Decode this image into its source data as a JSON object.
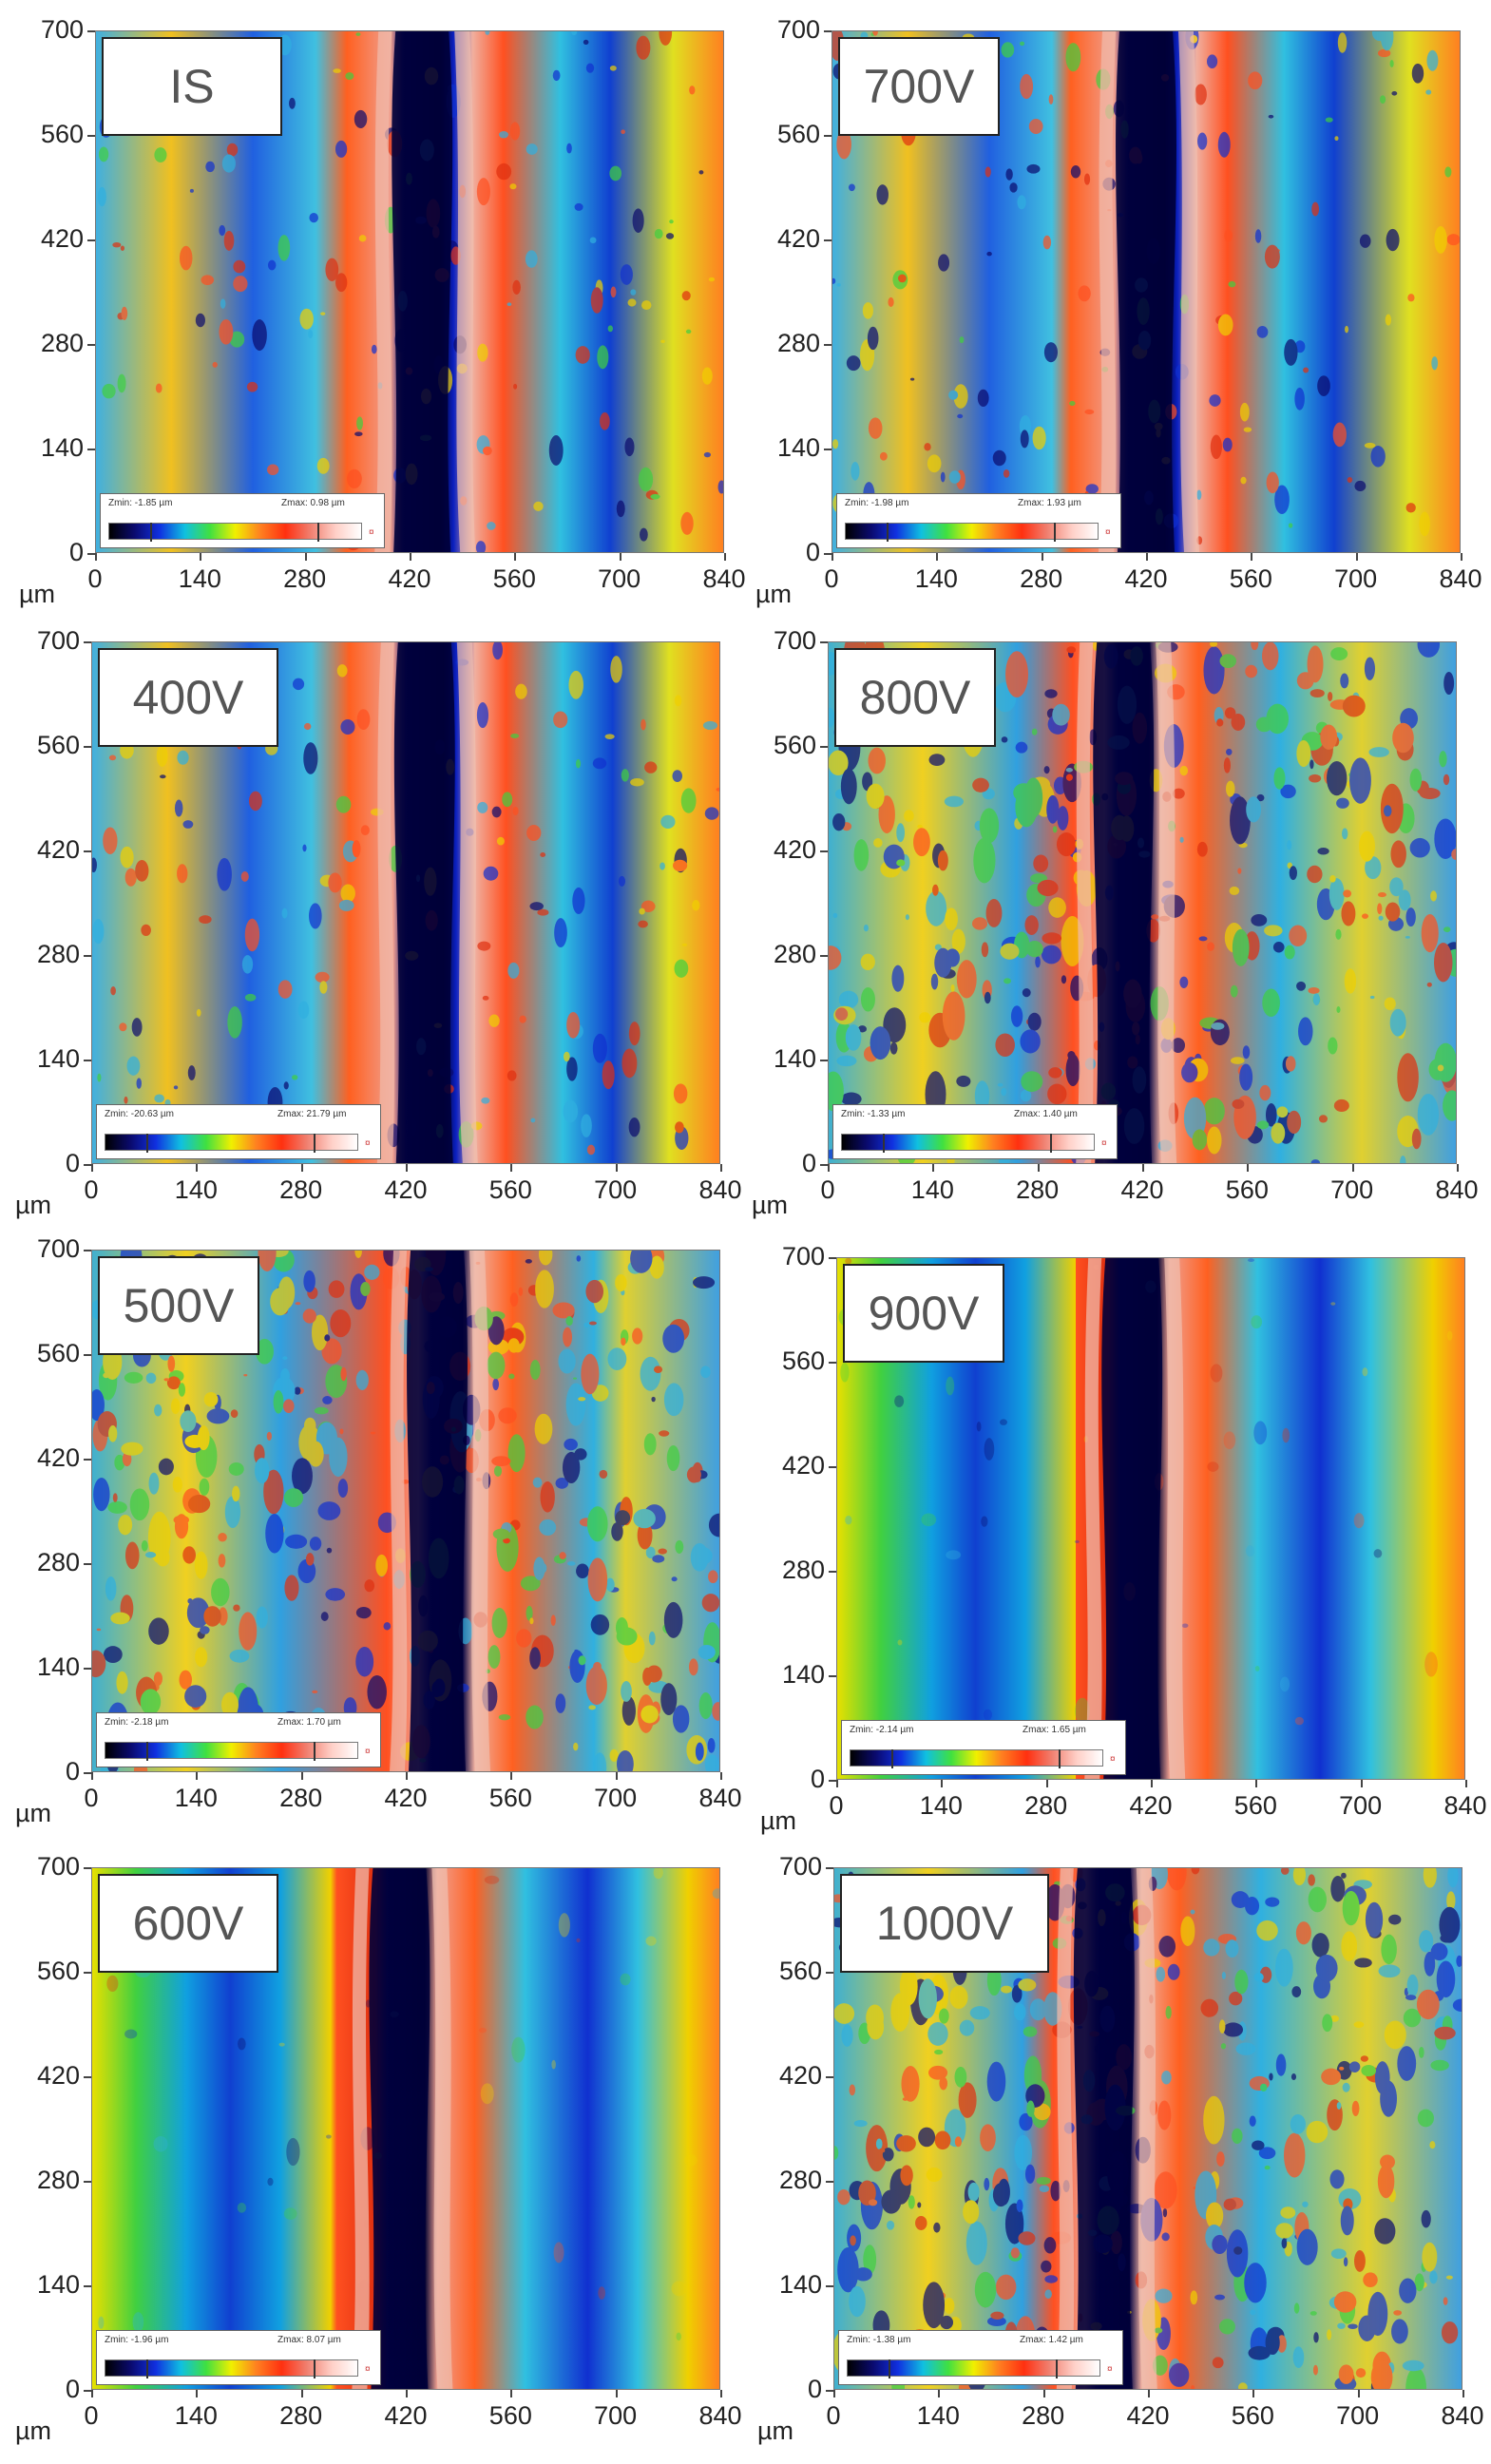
{
  "axis": {
    "y_ticks": [
      "700",
      "560",
      "420",
      "280",
      "140",
      "0"
    ],
    "x_ticks": [
      "0",
      "140",
      "280",
      "420",
      "560",
      "700",
      "840"
    ],
    "unit": "µm"
  },
  "scale": {
    "gradient_colors": [
      "#000000",
      "#0a0a6e",
      "#1030e0",
      "#10c0e0",
      "#40e040",
      "#f0f000",
      "#ff8020",
      "#ff3010",
      "#f08070",
      "#ffd0c8",
      "#ffffff"
    ],
    "end_glyph": "¤"
  },
  "panels": [
    {
      "label": "IS",
      "zmin": "Zmin: -1.85 µm",
      "zmax": "Zmax: 0.98 µm"
    },
    {
      "label": "700V",
      "zmin": "Zmin: -1.98 µm",
      "zmax": "Zmax: 1.93 µm"
    },
    {
      "label": "400V",
      "zmin": "Zmin: -20.63 µm",
      "zmax": "Zmax: 21.79 µm"
    },
    {
      "label": "800V",
      "zmin": "Zmin: -1.33 µm",
      "zmax": "Zmax: 1.40 µm"
    },
    {
      "label": "500V",
      "zmin": "Zmin: -2.18 µm",
      "zmax": "Zmax: 1.70 µm"
    },
    {
      "label": "900V",
      "zmin": "Zmin: -2.14 µm",
      "zmax": "Zmax: 1.65 µm"
    },
    {
      "label": "600V",
      "zmin": "Zmin: -1.96 µm",
      "zmax": "Zmax: 8.07 µm"
    },
    {
      "label": "1000V",
      "zmin": "Zmin: -1.38 µm",
      "zmax": "Zmax: 1.42 µm"
    }
  ]
}
